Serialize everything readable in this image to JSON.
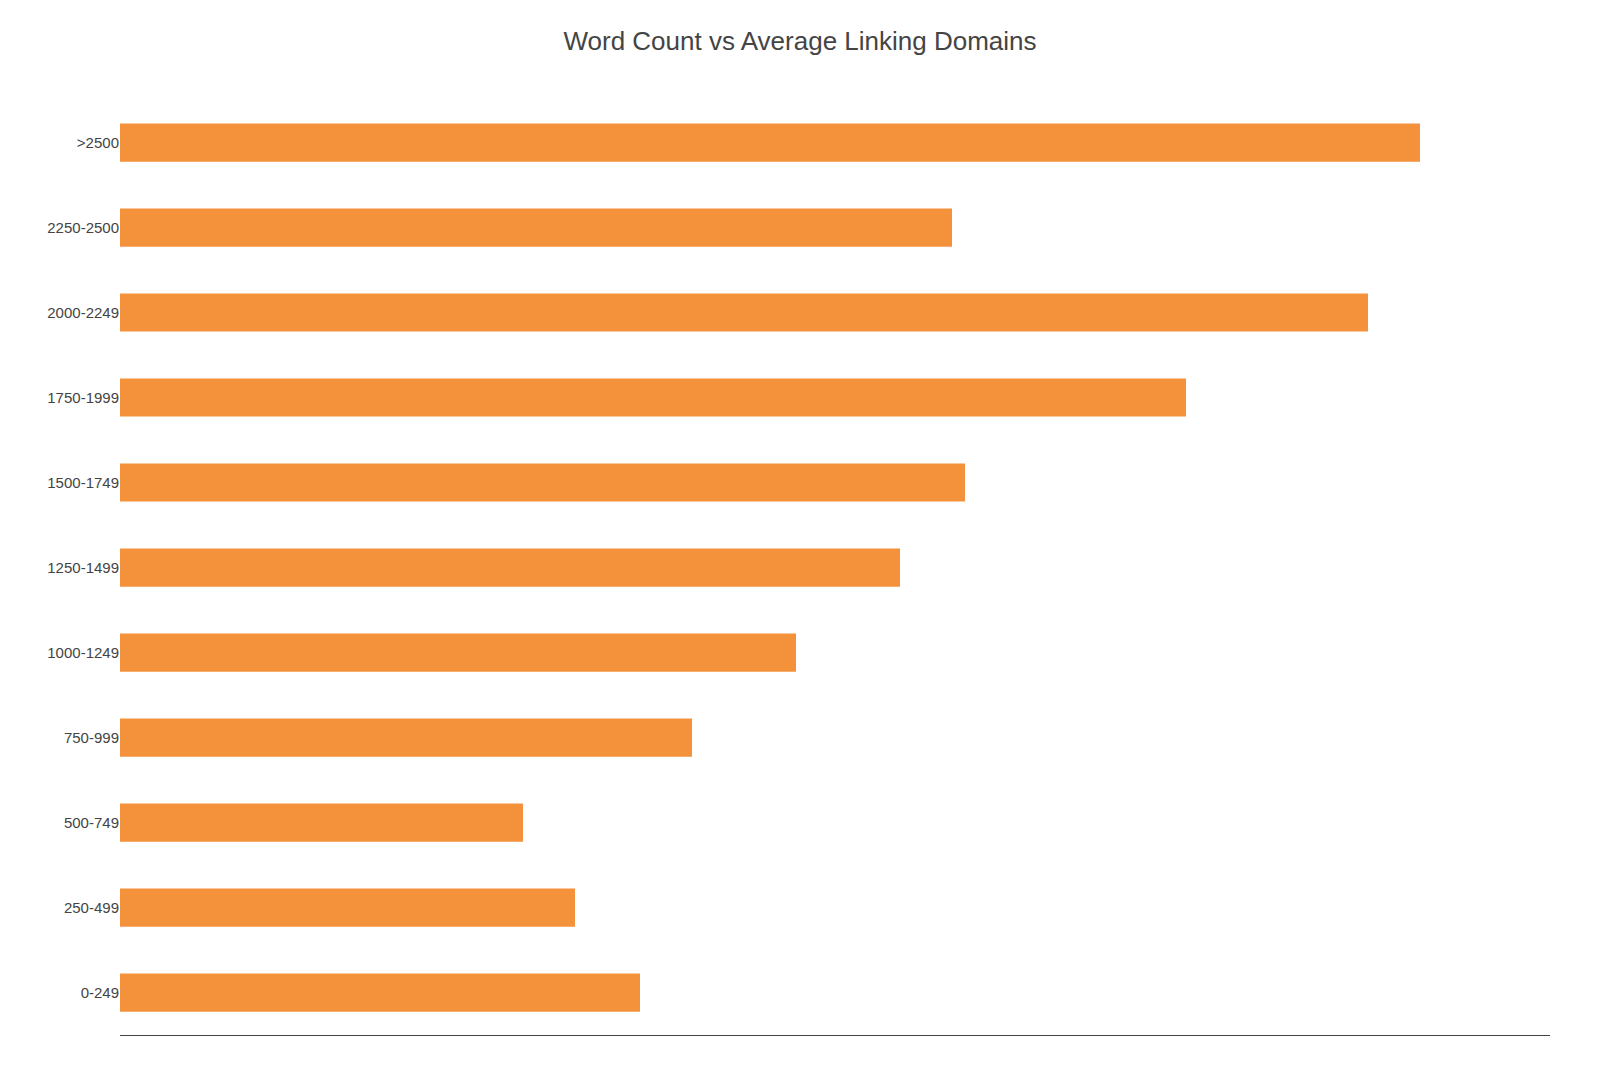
{
  "chart_data": {
    "type": "bar",
    "orientation": "horizontal",
    "title": "Word Count vs Average Linking Domains",
    "categories": [
      ">2500",
      "2250-2500",
      "2000-2249",
      "1750-1999",
      "1500-1749",
      "1250-1499",
      "1000-1249",
      "750-999",
      "500-749",
      "250-499",
      "0-249"
    ],
    "values": [
      100,
      64,
      96,
      82,
      65,
      60,
      52,
      44,
      31,
      35,
      40
    ],
    "color": "#F4923C",
    "xlim": [
      0,
      110
    ],
    "grid": false,
    "tick_labels": "y"
  }
}
